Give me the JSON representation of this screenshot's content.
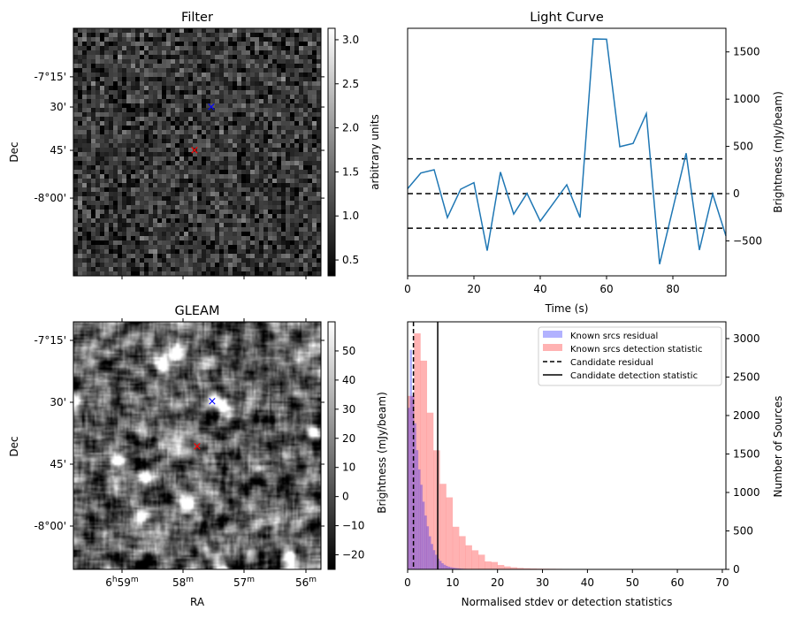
{
  "colors": {
    "line": "#1f77b4",
    "blue_hist": "#0000ff",
    "red_hist": "#ff0000",
    "marker_blue": "#0000ff",
    "marker_red": "#ff0000"
  },
  "chart_data": [
    {
      "type": "heatmap",
      "title": "Filter",
      "ylabel": "Dec",
      "ytick_labels": [
        "-7°15'",
        "30'",
        "45'",
        "-8°00'"
      ],
      "colorbar": {
        "label": "arbitrary units",
        "range": [
          0.32,
          3.13
        ],
        "ticks": [
          "0.5",
          "1.0",
          "1.5",
          "2.0",
          "2.5",
          "3.0"
        ],
        "tick_values": [
          0.5,
          1.0,
          1.5,
          2.0,
          2.5,
          3.0
        ]
      },
      "markers": [
        {
          "color": "blue",
          "symbol": "x"
        },
        {
          "color": "red",
          "symbol": "x"
        }
      ]
    },
    {
      "type": "line",
      "title": "Light Curve",
      "xlabel": "Time (s)",
      "ylabel": "Brightness (mJy/beam)",
      "xlim": [
        0,
        96
      ],
      "ylim": [
        -870,
        1750
      ],
      "xticks": [
        0,
        20,
        40,
        60,
        80
      ],
      "yticks": [
        -500,
        0,
        500,
        1000,
        1500
      ],
      "x": [
        0,
        4,
        8,
        12,
        16,
        20,
        24,
        28,
        32,
        36,
        40,
        44,
        48,
        52,
        56,
        60,
        64,
        68,
        72,
        76,
        80,
        84,
        88,
        92,
        96
      ],
      "y": [
        53,
        219,
        253,
        -253,
        47,
        116,
        -603,
        228,
        -216,
        3,
        -291,
        -100,
        94,
        -253,
        1637,
        1634,
        497,
        531,
        847,
        -747,
        -159,
        428,
        -597,
        -3,
        -447
      ],
      "hlines": [
        369,
        0,
        -366
      ]
    },
    {
      "type": "heatmap",
      "title": "GLEAM",
      "xlabel": "RA",
      "ylabel": "Dec",
      "xtick_labels": [
        {
          "main": "6",
          "sup1": "h",
          "mid": "59",
          "sup2": "m"
        },
        {
          "main": "58",
          "sup2": "m"
        },
        {
          "main": "57",
          "sup2": "m"
        },
        {
          "main": "56",
          "sup2": "m"
        }
      ],
      "ytick_labels": [
        "-7°15'",
        "30'",
        "45'",
        "-8°00'"
      ],
      "colorbar": {
        "label": "Brightness (mJy/beam)",
        "range": [
          -25,
          60
        ],
        "ticks": [
          "−20",
          "−10",
          "0",
          "10",
          "20",
          "30",
          "40",
          "50"
        ],
        "tick_values": [
          -20,
          -10,
          0,
          10,
          20,
          30,
          40,
          50
        ]
      },
      "markers": [
        {
          "color": "blue",
          "symbol": "x"
        },
        {
          "color": "red",
          "symbol": "x"
        }
      ]
    },
    {
      "type": "bar",
      "subtype": "histogram",
      "xlabel": "Normalised stdev or detection statistics",
      "ylabel": "Number of Sources",
      "xlim": [
        0,
        70.8
      ],
      "ylim": [
        0,
        3218
      ],
      "xticks": [
        0,
        10,
        20,
        30,
        40,
        50,
        60,
        70
      ],
      "yticks": [
        0,
        500,
        1000,
        1500,
        2000,
        2500,
        3000
      ],
      "legend_position": "top-right",
      "series": [
        {
          "name": "Known srcs residual",
          "bin_width": 0.47,
          "values": [
            2100,
            2855,
            2255,
            1900,
            1550,
            1300,
            1100,
            880,
            700,
            560,
            430,
            330,
            250,
            190,
            140,
            110,
            80,
            60,
            45,
            35,
            28,
            22,
            18,
            15,
            12,
            10,
            8,
            7,
            6,
            5,
            4,
            4,
            3,
            3,
            2,
            2,
            2,
            2,
            1,
            1
          ]
        },
        {
          "name": "Known srcs detection statistic",
          "bin_width": 1.43,
          "values": [
            2255,
            3068,
            2713,
            2037,
            1548,
            1112,
            936,
            554,
            432,
            313,
            248,
            191,
            103,
            96,
            57,
            38,
            27,
            19,
            15,
            12,
            10,
            9,
            8,
            7,
            6,
            5,
            5,
            4,
            4,
            3,
            3,
            3,
            2,
            2,
            3,
            2,
            2,
            1,
            2,
            2,
            1,
            2,
            1,
            1,
            1,
            1,
            2
          ]
        },
        {
          "name": "Candidate residual",
          "kind": "vline-dashed",
          "value": 1.3
        },
        {
          "name": "Candidate detection statistic",
          "kind": "vline-solid",
          "value": 6.7
        }
      ]
    }
  ]
}
